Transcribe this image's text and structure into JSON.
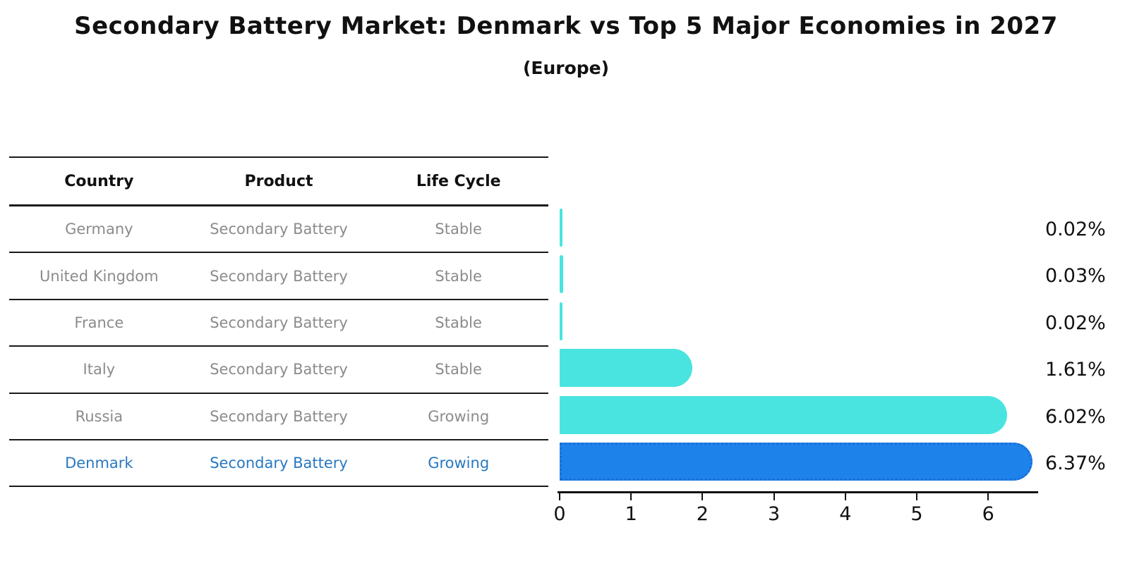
{
  "title": "Secondary Battery Market: Denmark vs Top 5 Major Economies in 2027",
  "subtitle": "(Europe)",
  "table": {
    "headers": [
      "Country",
      "Product",
      "Life Cycle"
    ],
    "rows": [
      {
        "country": "Germany",
        "product": "Secondary Battery",
        "life_cycle": "Stable",
        "highlight": false
      },
      {
        "country": "United Kingdom",
        "product": "Secondary Battery",
        "life_cycle": "Stable",
        "highlight": false
      },
      {
        "country": "France",
        "product": "Secondary Battery",
        "life_cycle": "Stable",
        "highlight": false
      },
      {
        "country": "Italy",
        "product": "Secondary Battery",
        "life_cycle": "Stable",
        "highlight": false
      },
      {
        "country": "Russia",
        "product": "Secondary Battery",
        "life_cycle": "Growing",
        "highlight": false
      },
      {
        "country": "Denmark",
        "product": "Secondary Battery",
        "life_cycle": "Growing",
        "highlight": true
      }
    ]
  },
  "chart_data": {
    "type": "bar",
    "orientation": "horizontal",
    "categories": [
      "Germany",
      "United Kingdom",
      "France",
      "Italy",
      "Russia",
      "Denmark"
    ],
    "values": [
      0.02,
      0.03,
      0.02,
      1.61,
      6.02,
      6.37
    ],
    "value_labels": [
      "0.02%",
      "0.03%",
      "0.02%",
      "1.61%",
      "6.02%",
      "6.37%"
    ],
    "unit": "%",
    "x_ticks": [
      0,
      1,
      2,
      3,
      4,
      5,
      6
    ],
    "xlim": [
      0,
      6.7
    ],
    "grid": false,
    "legend": false,
    "bar_color": "#49e4e0",
    "highlight_bar_color": "#1e82eb",
    "highlight_index": 5,
    "highlight_text_color": "#2878c0",
    "body_text_color": "#8b8b8b",
    "axis_color": "#111111"
  }
}
